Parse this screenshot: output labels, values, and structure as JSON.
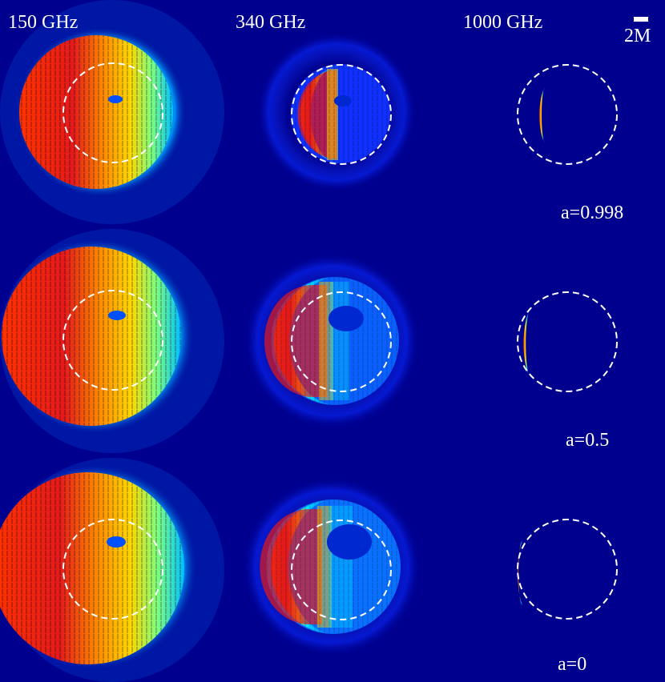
{
  "frequencies": [
    "150 GHz",
    "340 GHz",
    "1000 GHz"
  ],
  "spins": [
    "a=0.998",
    "a=0.5",
    "a=0"
  ],
  "scale_label": "2M",
  "colors": {
    "background": "#00008f",
    "red": "#d7191c",
    "orange": "#ff8c00",
    "yellow": "#ffd700",
    "cyan": "#00bfff",
    "blue": "#0050ff",
    "dashed_circle": "#ffffff",
    "polarization_ticks": "#000000"
  },
  "colormap": "jet"
}
